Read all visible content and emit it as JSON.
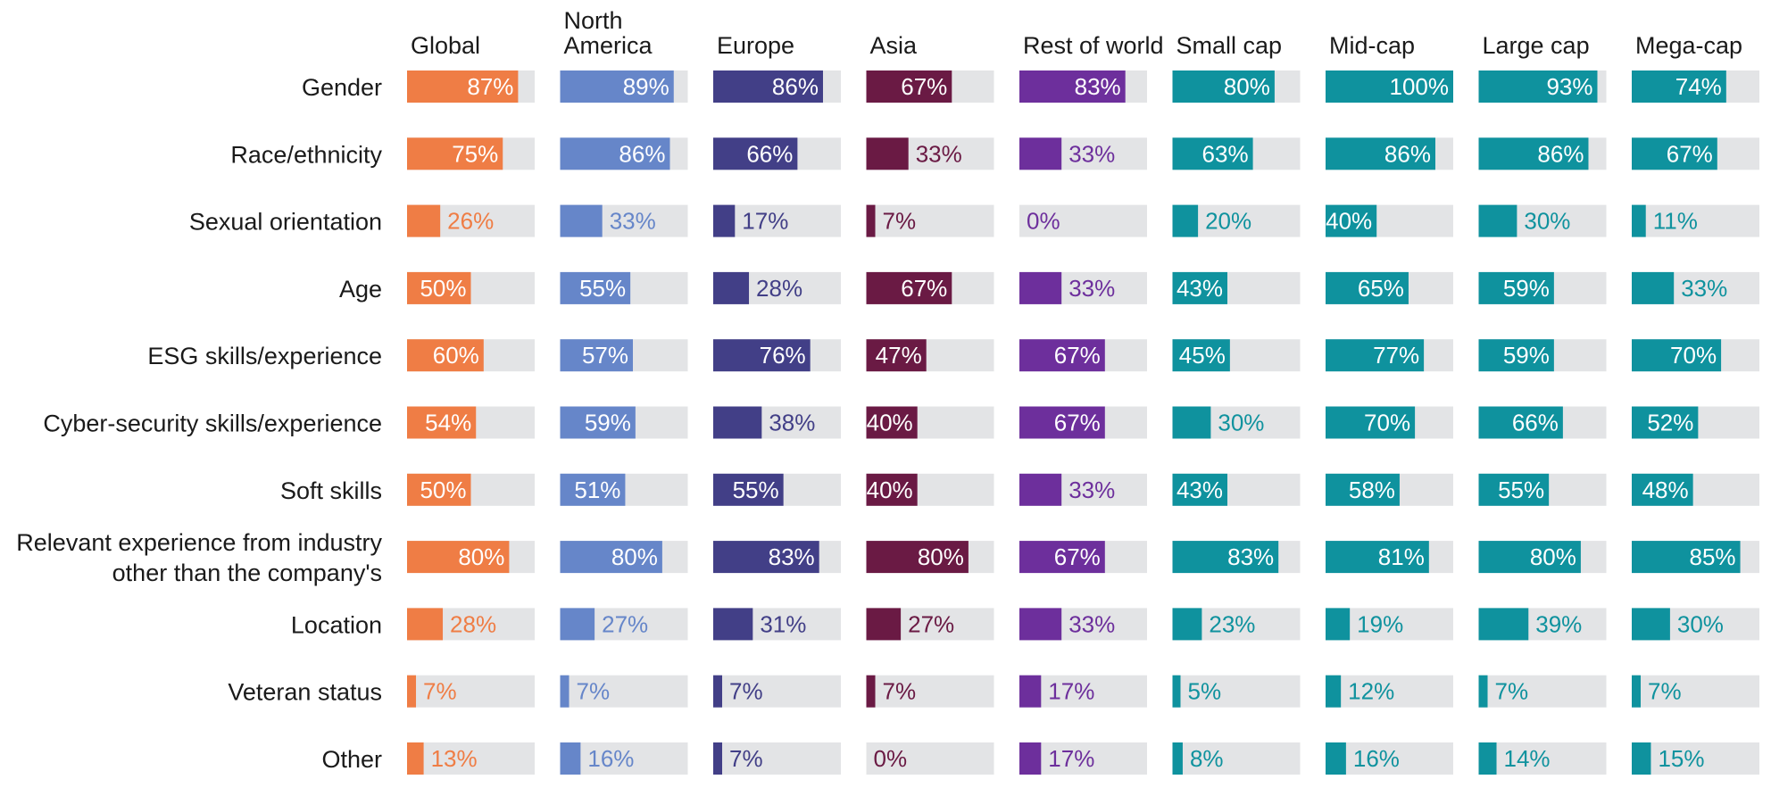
{
  "chart_data": {
    "type": "bar",
    "categories": [
      [
        "Gender"
      ],
      [
        "Race/ethnicity"
      ],
      [
        "Sexual orientation"
      ],
      [
        "Age"
      ],
      [
        "ESG skills/experience"
      ],
      [
        "Cyber-security skills/experience"
      ],
      [
        "Soft skills"
      ],
      [
        "Relevant experience from industry",
        "other than the company's"
      ],
      [
        "Location"
      ],
      [
        "Veteran status"
      ],
      [
        "Other"
      ]
    ],
    "series": [
      {
        "name": [
          "Global"
        ],
        "color": "#ef7d45",
        "values": [
          87,
          75,
          26,
          50,
          60,
          54,
          50,
          80,
          28,
          7,
          13
        ]
      },
      {
        "name": [
          "North",
          "America"
        ],
        "color": "#6686c9",
        "values": [
          89,
          86,
          33,
          55,
          57,
          59,
          51,
          80,
          27,
          7,
          16
        ]
      },
      {
        "name": [
          "Europe"
        ],
        "color": "#423f87",
        "values": [
          86,
          66,
          17,
          28,
          76,
          38,
          55,
          83,
          31,
          7,
          7
        ]
      },
      {
        "name": [
          "Asia"
        ],
        "color": "#6a1a44",
        "values": [
          67,
          33,
          7,
          67,
          47,
          40,
          40,
          80,
          27,
          7,
          0
        ]
      },
      {
        "name": [
          "Rest of world"
        ],
        "color": "#6d2f9c",
        "values": [
          83,
          33,
          0,
          33,
          67,
          67,
          33,
          67,
          33,
          17,
          17
        ]
      },
      {
        "name": [
          "Small cap"
        ],
        "color": "#0f929e",
        "values": [
          80,
          63,
          20,
          43,
          45,
          30,
          43,
          83,
          23,
          5,
          8
        ]
      },
      {
        "name": [
          "Mid-cap"
        ],
        "color": "#0f929e",
        "values": [
          100,
          86,
          40,
          65,
          77,
          70,
          58,
          81,
          19,
          12,
          16
        ]
      },
      {
        "name": [
          "Large cap"
        ],
        "color": "#0f929e",
        "values": [
          93,
          86,
          30,
          59,
          59,
          66,
          55,
          80,
          39,
          7,
          14
        ]
      },
      {
        "name": [
          "Mega-cap"
        ],
        "color": "#0f929e",
        "values": [
          74,
          67,
          11,
          33,
          70,
          52,
          48,
          85,
          30,
          7,
          15
        ]
      }
    ],
    "value_suffix": "%",
    "ylim": [
      0,
      100
    ],
    "track_color": "#e3e4e6",
    "grid": false,
    "legend": "none"
  }
}
